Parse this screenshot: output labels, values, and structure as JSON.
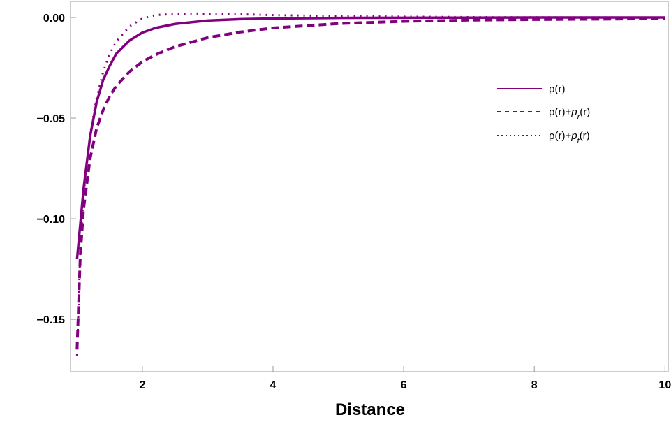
{
  "chart_data": {
    "type": "line",
    "title": "",
    "xlabel": "Distance",
    "ylabel": "",
    "xlim": [
      0.9,
      10.05
    ],
    "ylim": [
      -0.176,
      0.008
    ],
    "x_ticks": [
      2,
      4,
      6,
      8,
      10
    ],
    "x_tick_labels": [
      "2",
      "4",
      "6",
      "8",
      "10"
    ],
    "y_ticks": [
      0.0,
      -0.05,
      -0.1,
      -0.15
    ],
    "y_tick_labels": [
      "0.00",
      "−0.05",
      "−0.10",
      "−0.15"
    ],
    "grid": false,
    "frame": "box",
    "legend_position": "right-middle",
    "series": [
      {
        "name": "ρ(r)",
        "style": "solid",
        "color": "#800080",
        "x": [
          1.0,
          1.1,
          1.2,
          1.3,
          1.4,
          1.5,
          1.6,
          1.8,
          2.0,
          2.2,
          2.5,
          3.0,
          3.5,
          4.0,
          5.0,
          6.0,
          7.0,
          8.0,
          9.0,
          10.0
        ],
        "y": [
          -0.12,
          -0.085,
          -0.059,
          -0.042,
          -0.031,
          -0.024,
          -0.018,
          -0.0115,
          -0.0075,
          -0.0052,
          -0.0032,
          -0.0015,
          -0.0008,
          -0.0005,
          -0.0002,
          -0.0001,
          -5e-05,
          0.0,
          0.0,
          0.0
        ]
      },
      {
        "name": "ρ(r)+p_r(r)",
        "name_parts": [
          "ρ(r)+",
          "p",
          "r",
          "(r)"
        ],
        "style": "dashed",
        "color": "#800080",
        "x": [
          1.0,
          1.05,
          1.1,
          1.2,
          1.3,
          1.4,
          1.5,
          1.6,
          1.8,
          2.0,
          2.2,
          2.5,
          3.0,
          3.5,
          4.0,
          5.0,
          6.0,
          7.0,
          8.0,
          9.0,
          10.0
        ],
        "y": [
          -0.165,
          -0.118,
          -0.095,
          -0.07,
          -0.055,
          -0.046,
          -0.039,
          -0.034,
          -0.027,
          -0.022,
          -0.0185,
          -0.0145,
          -0.01,
          -0.0072,
          -0.0052,
          -0.003,
          -0.0019,
          -0.0013,
          -0.001,
          -0.0008,
          -0.0006
        ]
      },
      {
        "name": "ρ(r)+p_t(r)",
        "name_parts": [
          "ρ(r)+",
          "p",
          "t",
          "(r)"
        ],
        "style": "dotted",
        "color": "#800080",
        "x": [
          1.0,
          1.05,
          1.1,
          1.2,
          1.3,
          1.4,
          1.5,
          1.6,
          1.8,
          2.0,
          2.2,
          2.5,
          2.8,
          3.0,
          3.5,
          4.0,
          5.0,
          6.0,
          7.0,
          8.0,
          9.0,
          10.0
        ],
        "y": [
          -0.168,
          -0.115,
          -0.088,
          -0.058,
          -0.04,
          -0.027,
          -0.018,
          -0.012,
          -0.0045,
          -0.0005,
          0.0012,
          0.0018,
          0.002,
          0.0019,
          0.0016,
          0.0012,
          0.0007,
          0.0004,
          0.0002,
          0.0001,
          5e-05,
          0.0
        ]
      }
    ]
  }
}
